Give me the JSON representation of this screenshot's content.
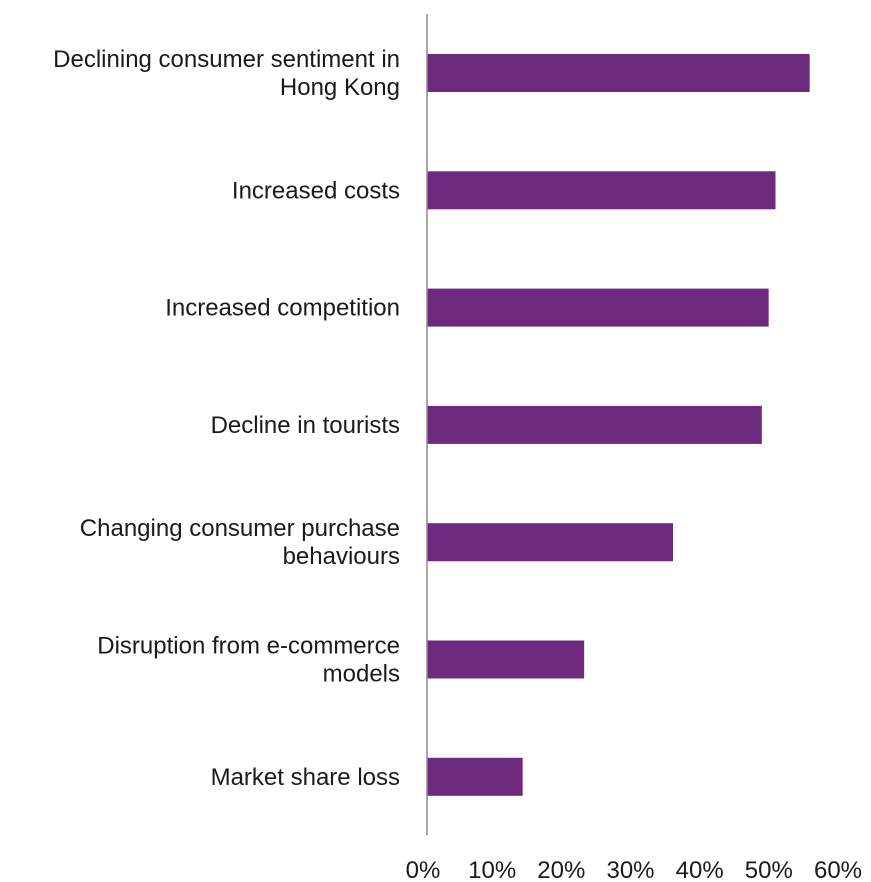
{
  "chart_data": {
    "type": "bar",
    "orientation": "horizontal",
    "title": "",
    "xlabel": "",
    "ylabel": "",
    "categories": [
      [
        "Declining consumer sentiment in",
        "Hong Kong"
      ],
      [
        "Increased costs"
      ],
      [
        "Increased competition"
      ],
      [
        "Decline in tourists"
      ],
      [
        "Changing consumer purchase",
        "behaviours"
      ],
      [
        "Disruption from e-commerce",
        "models"
      ],
      [
        "Market share loss"
      ]
    ],
    "values": [
      56,
      51,
      50,
      49,
      36,
      23,
      14
    ],
    "x_ticks": [
      "0%",
      "10%",
      "20%",
      "30%",
      "40%",
      "50%",
      "60%"
    ],
    "xlim": [
      0,
      60
    ],
    "grid": false,
    "legend": "none",
    "bar_color": "#6d2a7e"
  }
}
